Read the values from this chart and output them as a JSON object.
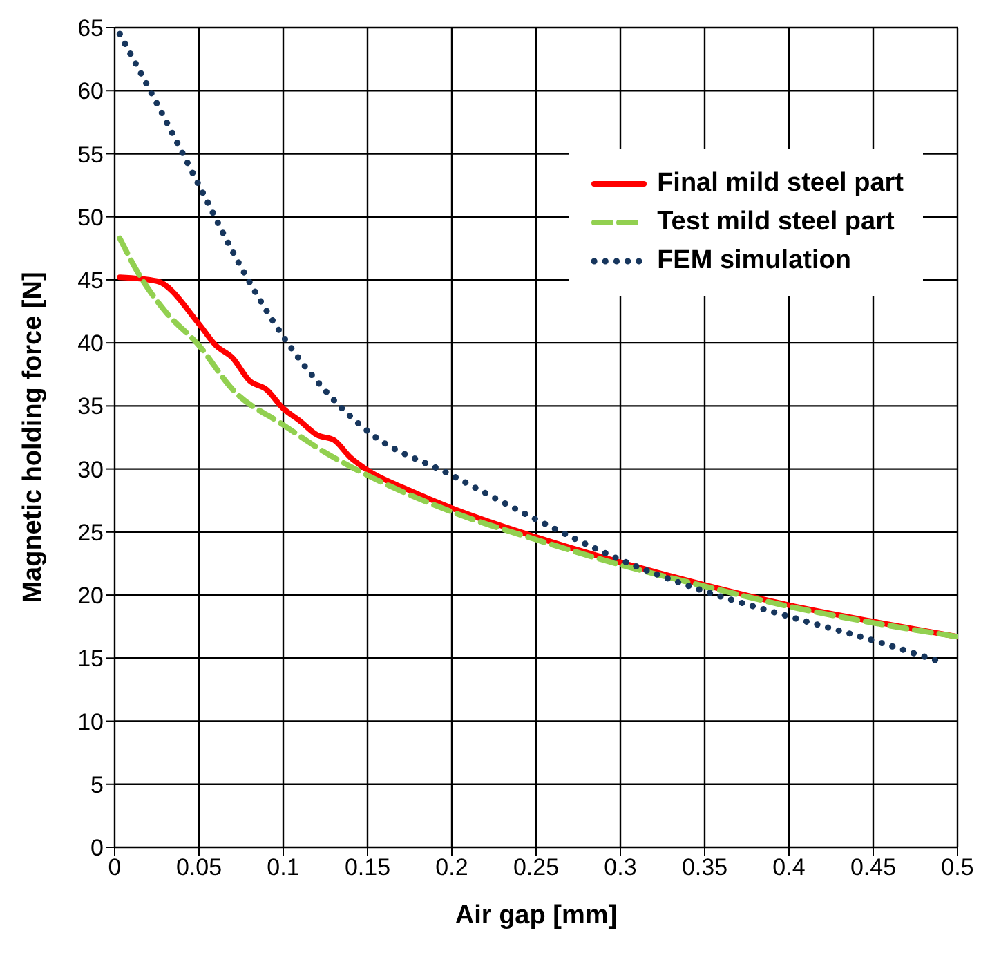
{
  "chart_data": {
    "type": "line",
    "xlabel": "Air gap [mm]",
    "ylabel": "Magnetic holding force [N]",
    "xlim": [
      0,
      0.5
    ],
    "xticks": [
      0,
      0.05,
      0.1,
      0.15,
      0.2,
      0.25,
      0.3,
      0.35,
      0.4,
      0.45,
      0.5
    ],
    "ylim": [
      0,
      65
    ],
    "yticks": [
      0,
      5,
      10,
      15,
      20,
      25,
      30,
      35,
      40,
      45,
      50,
      55,
      60,
      65
    ],
    "grid": true,
    "legend": "top right",
    "marker": "none",
    "series": [
      {
        "name": "Final mild steel part",
        "color": "#ff0000",
        "line_style": "solid",
        "x": [
          0.003,
          0.025,
          0.05,
          0.06,
          0.07,
          0.08,
          0.09,
          0.1,
          0.11,
          0.12,
          0.13,
          0.14,
          0.15,
          0.175,
          0.2,
          0.25,
          0.3,
          0.35,
          0.4,
          0.45,
          0.5
        ],
        "values": [
          45.2,
          44.9,
          41.5,
          39.8,
          38.8,
          37.0,
          36.3,
          34.8,
          33.8,
          32.7,
          32.3,
          30.9,
          29.9,
          28.3,
          26.9,
          24.6,
          22.6,
          20.8,
          19.2,
          17.9,
          16.7
        ]
      },
      {
        "name": "Test mild steel part",
        "color": "#92d050",
        "line_style": "dashed",
        "x": [
          0.003,
          0.015,
          0.03,
          0.05,
          0.07,
          0.1,
          0.125,
          0.15,
          0.2,
          0.25,
          0.3,
          0.35,
          0.4,
          0.45,
          0.5
        ],
        "values": [
          48.3,
          45.3,
          42.5,
          39.8,
          36.3,
          33.5,
          31.3,
          29.5,
          26.6,
          24.4,
          22.4,
          20.7,
          19.1,
          17.8,
          16.7
        ]
      },
      {
        "name": "FEM simulation",
        "color": "#17365d",
        "line_style": "dotted",
        "x": [
          0.003,
          0.025,
          0.05,
          0.075,
          0.1,
          0.125,
          0.15,
          0.2,
          0.25,
          0.3,
          0.35,
          0.4,
          0.45,
          0.49
        ],
        "values": [
          64.5,
          59,
          52.5,
          46,
          40.5,
          36.2,
          33,
          29.5,
          26,
          22.8,
          20.3,
          18.3,
          16.4,
          14.7
        ]
      }
    ]
  }
}
